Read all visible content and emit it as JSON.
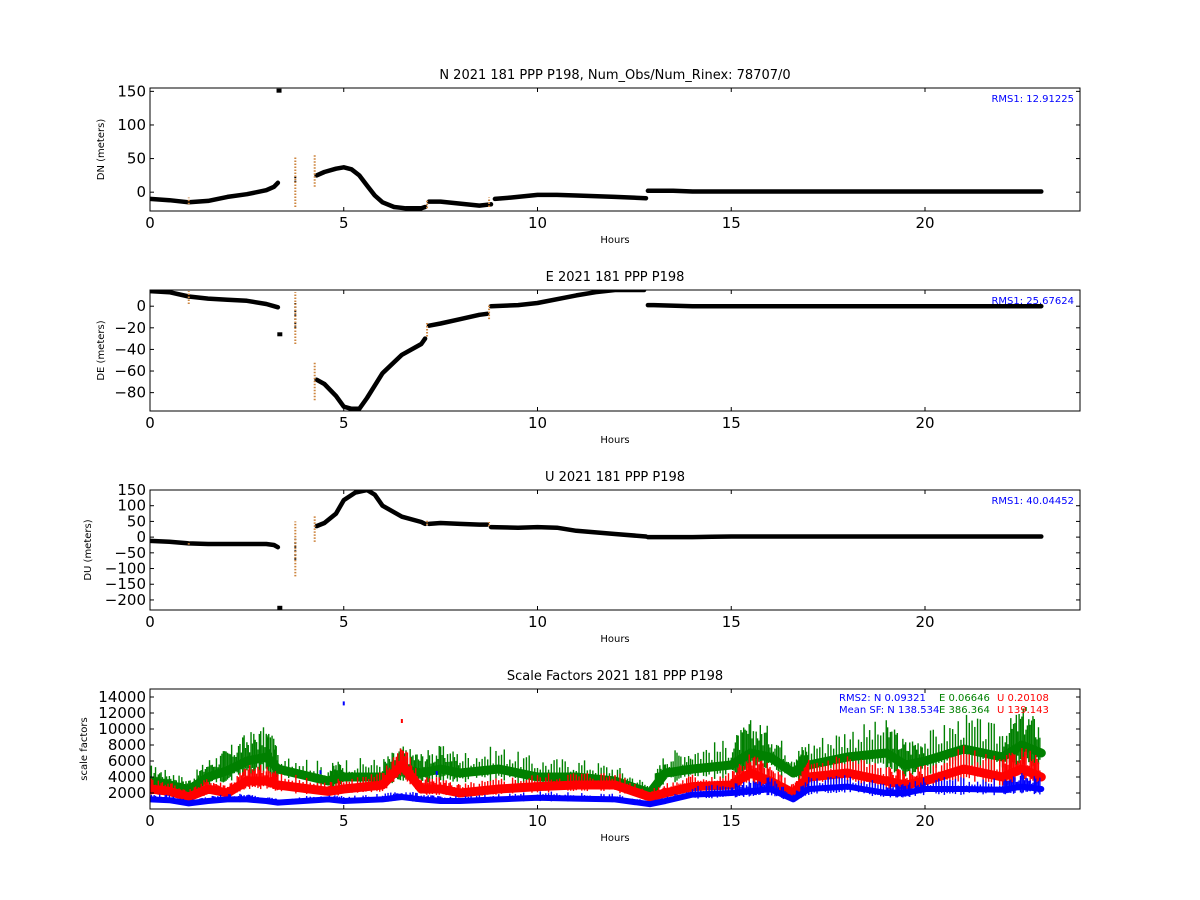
{
  "chart_data": [
    {
      "type": "scatter",
      "title": "N 2021 181 PPP  P198, Num_Obs/Num_Rinex: 78707/0",
      "xlabel": "Hours",
      "ylabel": "DN (meters)",
      "xlim": [
        0,
        24
      ],
      "ylim": [
        -28,
        155
      ],
      "xticks": [
        "0",
        "5",
        "10",
        "15",
        "20"
      ],
      "yticks": [
        0,
        50,
        100,
        150
      ],
      "ytick_labels": [
        "0",
        "50",
        "100",
        "150"
      ],
      "annotations": [
        {
          "text": "RMS1: 12.91225",
          "color": "#0000ff"
        }
      ],
      "series": [
        {
          "color": "#000000",
          "x": [
            0,
            0.5,
            1,
            1.5,
            2,
            2.5,
            3,
            3.2,
            3.3
          ],
          "y": [
            -10,
            -12,
            -15,
            -13,
            -7,
            -3,
            3,
            8,
            14
          ]
        },
        {
          "color": "#000000",
          "x": [
            3.33
          ],
          "y": [
            151
          ]
        },
        {
          "color": "#000000",
          "x": [
            4.3,
            4.5,
            4.8,
            5,
            5.2,
            5.4,
            5.6,
            5.8,
            6,
            6.3,
            6.6,
            7,
            7.1
          ],
          "y": [
            25,
            30,
            35,
            37,
            34,
            25,
            10,
            -5,
            -15,
            -22,
            -24,
            -24,
            -22
          ]
        },
        {
          "color": "#000000",
          "x": [
            7.2,
            7.5,
            8,
            8.5,
            8.8
          ],
          "y": [
            -14,
            -14,
            -17,
            -20,
            -18
          ]
        },
        {
          "color": "#000000",
          "x": [
            8.9,
            9.3,
            10,
            10.5,
            11,
            12,
            12.8
          ],
          "y": [
            -10,
            -8,
            -4,
            -4,
            -5,
            -7,
            -9
          ]
        },
        {
          "color": "#000000",
          "x": [
            12.85,
            13,
            13.5,
            14,
            15,
            17,
            20,
            23
          ],
          "y": [
            2,
            2,
            2,
            1,
            1,
            1,
            1,
            1
          ]
        },
        {
          "color": "#000000",
          "x": [
            3.75
          ],
          "y": [
            18
          ],
          "vspan": [
            15,
            25
          ]
        },
        {
          "color": "#cd853f",
          "x": [
            1
          ],
          "y": [
            -12
          ],
          "vspan": [
            -18,
            -8
          ]
        },
        {
          "color": "#cd853f",
          "x": [
            3.75
          ],
          "y": [
            20
          ],
          "vspan": [
            -22,
            52
          ]
        },
        {
          "color": "#cd853f",
          "x": [
            4.25
          ],
          "y": [
            40
          ],
          "vspan": [
            8,
            55
          ]
        },
        {
          "color": "#cd853f",
          "x": [
            7.15
          ],
          "y": [
            -18
          ],
          "vspan": [
            -24,
            -12
          ]
        },
        {
          "color": "#cd853f",
          "x": [
            8.75
          ],
          "y": [
            -15
          ],
          "vspan": [
            -22,
            -8
          ]
        }
      ]
    },
    {
      "type": "scatter",
      "title": "E 2021 181 PPP  P198",
      "xlabel": "Hours",
      "ylabel": "DE (meters)",
      "xlim": [
        0,
        24
      ],
      "ylim": [
        -97,
        15
      ],
      "xticks": [
        "0",
        "5",
        "10",
        "15",
        "20"
      ],
      "yticks": [
        0,
        -20,
        -40,
        -60,
        -80
      ],
      "ytick_labels": [
        "0",
        "−20",
        "−40",
        "−60",
        "−80"
      ],
      "annotations": [
        {
          "text": "RMS1: 25.67624",
          "color": "#0000ff"
        }
      ],
      "series": [
        {
          "color": "#000000",
          "x": [
            0,
            0.5,
            1,
            1.5,
            2,
            2.5,
            3,
            3.2,
            3.3
          ],
          "y": [
            14,
            13,
            9,
            7,
            6,
            5,
            2,
            0,
            -1
          ]
        },
        {
          "color": "#000000",
          "x": [
            3.35
          ],
          "y": [
            -26
          ]
        },
        {
          "color": "#000000",
          "x": [
            4.3,
            4.5,
            4.8,
            5,
            5.2,
            5.4,
            5.6,
            6,
            6.5,
            7,
            7.1
          ],
          "y": [
            -68,
            -72,
            -83,
            -93,
            -95,
            -95,
            -85,
            -62,
            -45,
            -35,
            -30
          ]
        },
        {
          "color": "#000000",
          "x": [
            7.2,
            7.5,
            8,
            8.5,
            8.7
          ],
          "y": [
            -18,
            -16,
            -12,
            -8,
            -7
          ]
        },
        {
          "color": "#000000",
          "x": [
            8.8,
            9.5,
            10,
            11,
            11.5,
            12,
            12.75
          ],
          "y": [
            0,
            1,
            3,
            10,
            13,
            15,
            15
          ]
        },
        {
          "color": "#000000",
          "x": [
            12.85,
            13,
            14,
            15,
            17,
            20,
            23
          ],
          "y": [
            1,
            1,
            0,
            0,
            0,
            0,
            0
          ]
        },
        {
          "color": "#000000",
          "x": [
            3.75
          ],
          "y": [
            -10
          ],
          "vspan": [
            -20,
            3
          ]
        },
        {
          "color": "#cd853f",
          "x": [
            1
          ],
          "y": [
            7
          ],
          "vspan": [
            2,
            14
          ]
        },
        {
          "color": "#cd853f",
          "x": [
            3.75
          ],
          "y": [
            -10
          ],
          "vspan": [
            -35,
            13
          ]
        },
        {
          "color": "#cd853f",
          "x": [
            4.25
          ],
          "y": [
            -68
          ],
          "vspan": [
            -87,
            -52
          ]
        },
        {
          "color": "#cd853f",
          "x": [
            7.15
          ],
          "y": [
            -22
          ],
          "vspan": [
            -28,
            -15
          ]
        },
        {
          "color": "#cd853f",
          "x": [
            8.75
          ],
          "y": [
            -6
          ],
          "vspan": [
            -12,
            2
          ]
        }
      ]
    },
    {
      "type": "scatter",
      "title": "U 2021 181 PPP  P198",
      "xlabel": "Hours",
      "ylabel": "DU (meters)",
      "xlim": [
        0,
        24
      ],
      "ylim": [
        -232,
        150
      ],
      "xticks": [
        "0",
        "5",
        "10",
        "15",
        "20"
      ],
      "yticks": [
        150,
        100,
        50,
        0,
        -50,
        -100,
        -150,
        -200
      ],
      "ytick_labels": [
        "150",
        "100",
        "50",
        "0",
        "−50",
        "−100",
        "−150",
        "−200"
      ],
      "annotations": [
        {
          "text": "RMS1: 40.04452",
          "color": "#0000ff"
        }
      ],
      "series": [
        {
          "color": "#000000",
          "x": [
            0,
            0.5,
            1,
            1.5,
            2,
            2.5,
            3,
            3.2,
            3.3
          ],
          "y": [
            -12,
            -15,
            -20,
            -22,
            -22,
            -22,
            -22,
            -25,
            -32
          ]
        },
        {
          "color": "#000000",
          "x": [
            3.35
          ],
          "y": [
            -225
          ]
        },
        {
          "color": "#000000",
          "x": [
            4.3,
            4.5,
            4.8,
            5,
            5.3,
            5.6,
            5.8,
            6,
            6.5,
            7,
            7.1
          ],
          "y": [
            35,
            45,
            75,
            118,
            142,
            150,
            135,
            100,
            65,
            48,
            42
          ]
        },
        {
          "color": "#000000",
          "x": [
            7.2,
            7.5,
            8,
            8.5,
            8.7
          ],
          "y": [
            42,
            45,
            42,
            40,
            40
          ]
        },
        {
          "color": "#000000",
          "x": [
            8.8,
            9.5,
            10,
            10.5,
            11,
            12,
            12.8
          ],
          "y": [
            32,
            30,
            32,
            30,
            20,
            10,
            2
          ]
        },
        {
          "color": "#000000",
          "x": [
            12.85,
            14,
            14.5,
            15,
            17,
            20,
            23
          ],
          "y": [
            0,
            0,
            1,
            2,
            2,
            2,
            2
          ]
        },
        {
          "color": "#000000",
          "x": [
            3.75
          ],
          "y": [
            -50
          ],
          "vspan": [
            -72,
            -5
          ]
        },
        {
          "color": "#cd853f",
          "x": [
            1
          ],
          "y": [
            -18
          ],
          "vspan": [
            -24,
            -14
          ]
        },
        {
          "color": "#cd853f",
          "x": [
            3.75
          ],
          "y": [
            -30
          ],
          "vspan": [
            -125,
            50
          ]
        },
        {
          "color": "#cd853f",
          "x": [
            4.25
          ],
          "y": [
            50
          ],
          "vspan": [
            -15,
            70
          ]
        },
        {
          "color": "#cd853f",
          "x": [
            7.15
          ],
          "y": [
            45
          ],
          "vspan": [
            38,
            52
          ]
        },
        {
          "color": "#cd853f",
          "x": [
            8.75
          ],
          "y": [
            40
          ],
          "vspan": [
            35,
            48
          ]
        }
      ]
    },
    {
      "type": "scatter",
      "title": "Scale Factors 2021 181 PPP  P198",
      "xlabel": "Hours",
      "ylabel": "scale factors",
      "xlim": [
        0,
        24
      ],
      "ylim": [
        0,
        15000
      ],
      "xticks": [
        "0",
        "5",
        "10",
        "15",
        "20"
      ],
      "yticks": [
        2000,
        4000,
        6000,
        8000,
        10000,
        12000,
        14000
      ],
      "ytick_labels": [
        "2000",
        "4000",
        "6000",
        "8000",
        "10000",
        "12000",
        "14000"
      ],
      "annotations": [
        {
          "text": "RMS2: N  0.09321",
          "color": "#0000ff"
        },
        {
          "text": "E  0.06646",
          "color": "#008000"
        },
        {
          "text": "U  0.20108",
          "color": "#ff0000"
        },
        {
          "text": "Mean SF: N 138.534",
          "color": "#0000ff"
        },
        {
          "text": "E 386.364",
          "color": "#008000"
        },
        {
          "text": "U 139.143",
          "color": "#ff0000"
        }
      ],
      "series": [
        {
          "color": "#008000",
          "x": [
            0,
            0.5,
            1,
            1.5,
            2,
            2.5,
            3,
            3.3,
            4.6,
            5,
            6,
            6.5,
            7,
            7.5,
            8,
            9,
            10,
            11,
            12,
            12.9,
            13.3,
            14,
            15,
            15.5,
            16,
            16.6,
            17,
            18,
            19,
            19.5,
            20,
            21,
            22,
            22.5,
            23
          ],
          "y": [
            3500,
            3000,
            2400,
            4000,
            4800,
            6000,
            6500,
            5000,
            3500,
            4000,
            4000,
            5000,
            4500,
            5000,
            4500,
            5000,
            4000,
            4000,
            3500,
            2000,
            4500,
            5000,
            5500,
            7000,
            6500,
            4500,
            5500,
            6500,
            7000,
            5500,
            6000,
            7500,
            6500,
            8000,
            7000
          ]
        },
        {
          "color": "#ff0000",
          "x": [
            0,
            0.5,
            1,
            1.5,
            2,
            2.5,
            3,
            3.3,
            4.6,
            5,
            6,
            6.5,
            7,
            7.5,
            8,
            9,
            10,
            11,
            12,
            12.9,
            13.3,
            14,
            15,
            15.5,
            16,
            16.6,
            17,
            18,
            19,
            19.5,
            20,
            21,
            22,
            22.5,
            23
          ],
          "y": [
            2500,
            2200,
            1500,
            2500,
            2000,
            3500,
            3500,
            3000,
            2200,
            2500,
            3000,
            5500,
            2500,
            2500,
            2000,
            2500,
            2800,
            3000,
            3000,
            1500,
            2000,
            2800,
            3000,
            4500,
            3500,
            2000,
            4000,
            4500,
            3500,
            3000,
            3500,
            5000,
            4000,
            5000,
            4000
          ]
        },
        {
          "color": "#0000ff",
          "x": [
            0,
            0.5,
            1,
            1.5,
            2,
            2.5,
            3,
            3.3,
            4.6,
            5,
            6,
            6.5,
            7,
            7.5,
            8,
            9,
            10,
            11,
            12,
            12.9,
            13.3,
            14,
            15,
            15.5,
            16,
            16.6,
            17,
            18,
            19,
            19.5,
            20,
            21,
            22,
            22.5,
            23
          ],
          "y": [
            1200,
            1100,
            700,
            1000,
            1200,
            1200,
            1000,
            800,
            1200,
            1000,
            1200,
            1500,
            1200,
            1000,
            1000,
            1200,
            1400,
            1300,
            1200,
            600,
            1000,
            1800,
            2000,
            2200,
            2500,
            1200,
            2500,
            2800,
            2000,
            2000,
            2500,
            2500,
            2400,
            2800,
            2500
          ]
        }
      ]
    }
  ]
}
